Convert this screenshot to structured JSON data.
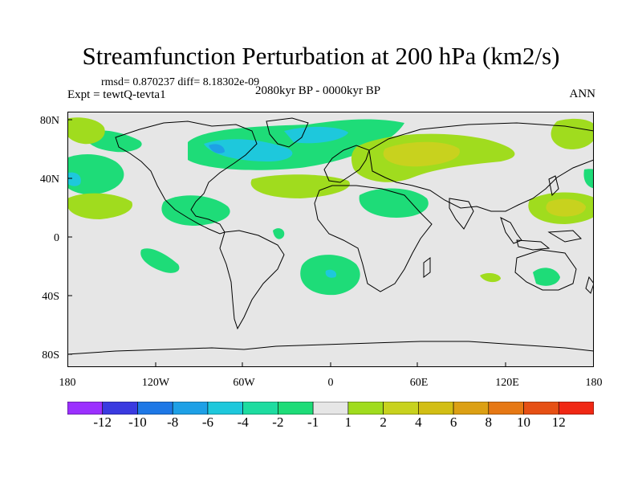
{
  "title": "Streamfunction Perturbation at 200 hPa (km2/s)",
  "stats_text": "rmsd= 0.870237 diff= 8.18302e-09",
  "experiment": "Expt = tewtQ-tevta1",
  "period": "2080kyr BP - 0000kyr BP",
  "season": "ANN",
  "lat_labels": [
    "80N",
    "40N",
    "0",
    "40S",
    "80S"
  ],
  "lon_labels": [
    "180",
    "120W",
    "60W",
    "0",
    "60E",
    "120E",
    "180"
  ],
  "colorbar": {
    "labels": [
      "-12",
      "-10",
      "-8",
      "-6",
      "-4",
      "-2",
      "-1",
      "1",
      "2",
      "4",
      "6",
      "8",
      "10",
      "12"
    ],
    "colors": [
      "#9b30ff",
      "#3a3ae0",
      "#1e78e6",
      "#1ea0e6",
      "#1ec8dc",
      "#1edca0",
      "#1edc78",
      "#e6e6e6",
      "#a0dc1e",
      "#c8d21e",
      "#d2be14",
      "#dca014",
      "#e67814",
      "#e65014",
      "#f02814"
    ]
  },
  "colors": {
    "background": "#e6e6e6",
    "neg1": "#1edc78",
    "neg2": "#1edca0",
    "neg4": "#1ec8dc",
    "neg6": "#1ea0e6",
    "pos1": "#a0dc1e",
    "pos2": "#c8d21e"
  }
}
